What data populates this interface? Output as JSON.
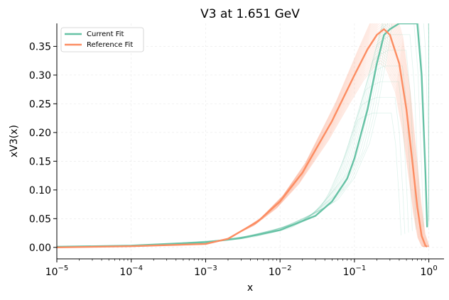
{
  "chart_data": {
    "type": "line",
    "title": "V3 at 1.651 GeV",
    "xlabel": "x",
    "ylabel": "xV3(x)",
    "xscale": "log",
    "xlim": [
      1e-05,
      1.6
    ],
    "ylim": [
      -0.02,
      0.39
    ],
    "x_ticks": [
      {
        "value": 1e-05,
        "base": "10",
        "exp": "−5"
      },
      {
        "value": 0.0001,
        "base": "10",
        "exp": "−4"
      },
      {
        "value": 0.001,
        "base": "10",
        "exp": "−3"
      },
      {
        "value": 0.01,
        "base": "10",
        "exp": "−2"
      },
      {
        "value": 0.1,
        "base": "10",
        "exp": "−1"
      },
      {
        "value": 1,
        "base": "10",
        "exp": "0"
      }
    ],
    "y_ticks": [
      {
        "value": 0.0,
        "label": "0.00"
      },
      {
        "value": 0.05,
        "label": "0.05"
      },
      {
        "value": 0.1,
        "label": "0.10"
      },
      {
        "value": 0.15,
        "label": "0.15"
      },
      {
        "value": 0.2,
        "label": "0.20"
      },
      {
        "value": 0.25,
        "label": "0.25"
      },
      {
        "value": 0.3,
        "label": "0.30"
      },
      {
        "value": 0.35,
        "label": "0.35"
      }
    ],
    "grid": true,
    "legend_position": "top-left",
    "series": [
      {
        "name": "Current Fit",
        "color": "#66c2a5",
        "x": [
          1e-05,
          0.0001,
          0.001,
          0.003,
          0.01,
          0.03,
          0.05,
          0.08,
          0.1,
          0.15,
          0.2,
          0.25,
          0.3,
          0.4,
          0.5,
          0.6,
          0.7,
          0.8,
          0.9,
          0.95
        ],
        "y": [
          0.001,
          0.003,
          0.009,
          0.016,
          0.03,
          0.055,
          0.08,
          0.12,
          0.155,
          0.24,
          0.32,
          0.37,
          0.38,
          0.39,
          0.39,
          0.39,
          0.39,
          0.3,
          0.13,
          0.035
        ]
      },
      {
        "name": "Reference Fit",
        "color": "#fc8d62",
        "x": [
          1e-05,
          0.0001,
          0.001,
          0.002,
          0.005,
          0.01,
          0.02,
          0.05,
          0.1,
          0.15,
          0.2,
          0.25,
          0.3,
          0.4,
          0.5,
          0.6,
          0.7,
          0.8,
          0.9,
          0.95
        ],
        "y": [
          0.0,
          0.002,
          0.006,
          0.015,
          0.045,
          0.08,
          0.13,
          0.22,
          0.3,
          0.345,
          0.37,
          0.38,
          0.37,
          0.32,
          0.24,
          0.15,
          0.07,
          0.02,
          0.003,
          0.001
        ]
      }
    ]
  }
}
